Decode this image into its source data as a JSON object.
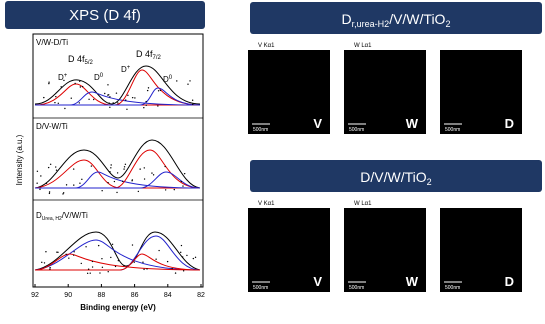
{
  "xps": {
    "title": "XPS (D 4f)",
    "ylabel": "Intensity (a.u.)",
    "xlabel": "Binding energy (eV)",
    "xlim": [
      92,
      82
    ],
    "xticks": [
      92,
      90,
      88,
      86,
      84,
      82
    ],
    "panels": [
      {
        "label": "V/W-D/Ti",
        "peak1": {
          "main": "D 4f",
          "sub": "5/2"
        },
        "peak2": {
          "main": "D 4f",
          "sub": "7/2"
        },
        "dp": {
          "main": "D",
          "sup": "+"
        },
        "d0": {
          "main": "D",
          "sup": "0"
        },
        "dp2": {
          "main": "D",
          "sup": "+"
        },
        "d02": {
          "main": "D",
          "sup": "0"
        }
      },
      {
        "label": "D/V-W/Ti"
      },
      {
        "label": {
          "main": "D",
          "sub": "Urea, H2",
          "rest": "/V/W/Ti"
        }
      }
    ]
  },
  "maps": [
    {
      "title": {
        "main": "D",
        "sub": "r,urea-H2",
        "rest": "/V/W/TiO",
        "sub2": "2"
      },
      "images": [
        {
          "element": "V Kα1",
          "letter": "V",
          "scale": "500nm",
          "color": "#e8201a"
        },
        {
          "element": "W Lα1",
          "letter": "W",
          "scale": "500nm",
          "color": "#2fbf2a"
        },
        {
          "element": "",
          "letter": "D",
          "scale": "500nm",
          "color": "#d8741c"
        }
      ]
    },
    {
      "title": {
        "main": "D/V/W/TiO",
        "sub": "2"
      },
      "images": [
        {
          "element": "V Kα1",
          "letter": "V",
          "scale": "500nm",
          "color": "#ee2a22"
        },
        {
          "element": "W Lα1",
          "letter": "W",
          "scale": "500nm",
          "color": "#2fc02a"
        },
        {
          "element": "",
          "letter": "D",
          "scale": "500nm",
          "color": "#e0801e"
        }
      ]
    }
  ]
}
